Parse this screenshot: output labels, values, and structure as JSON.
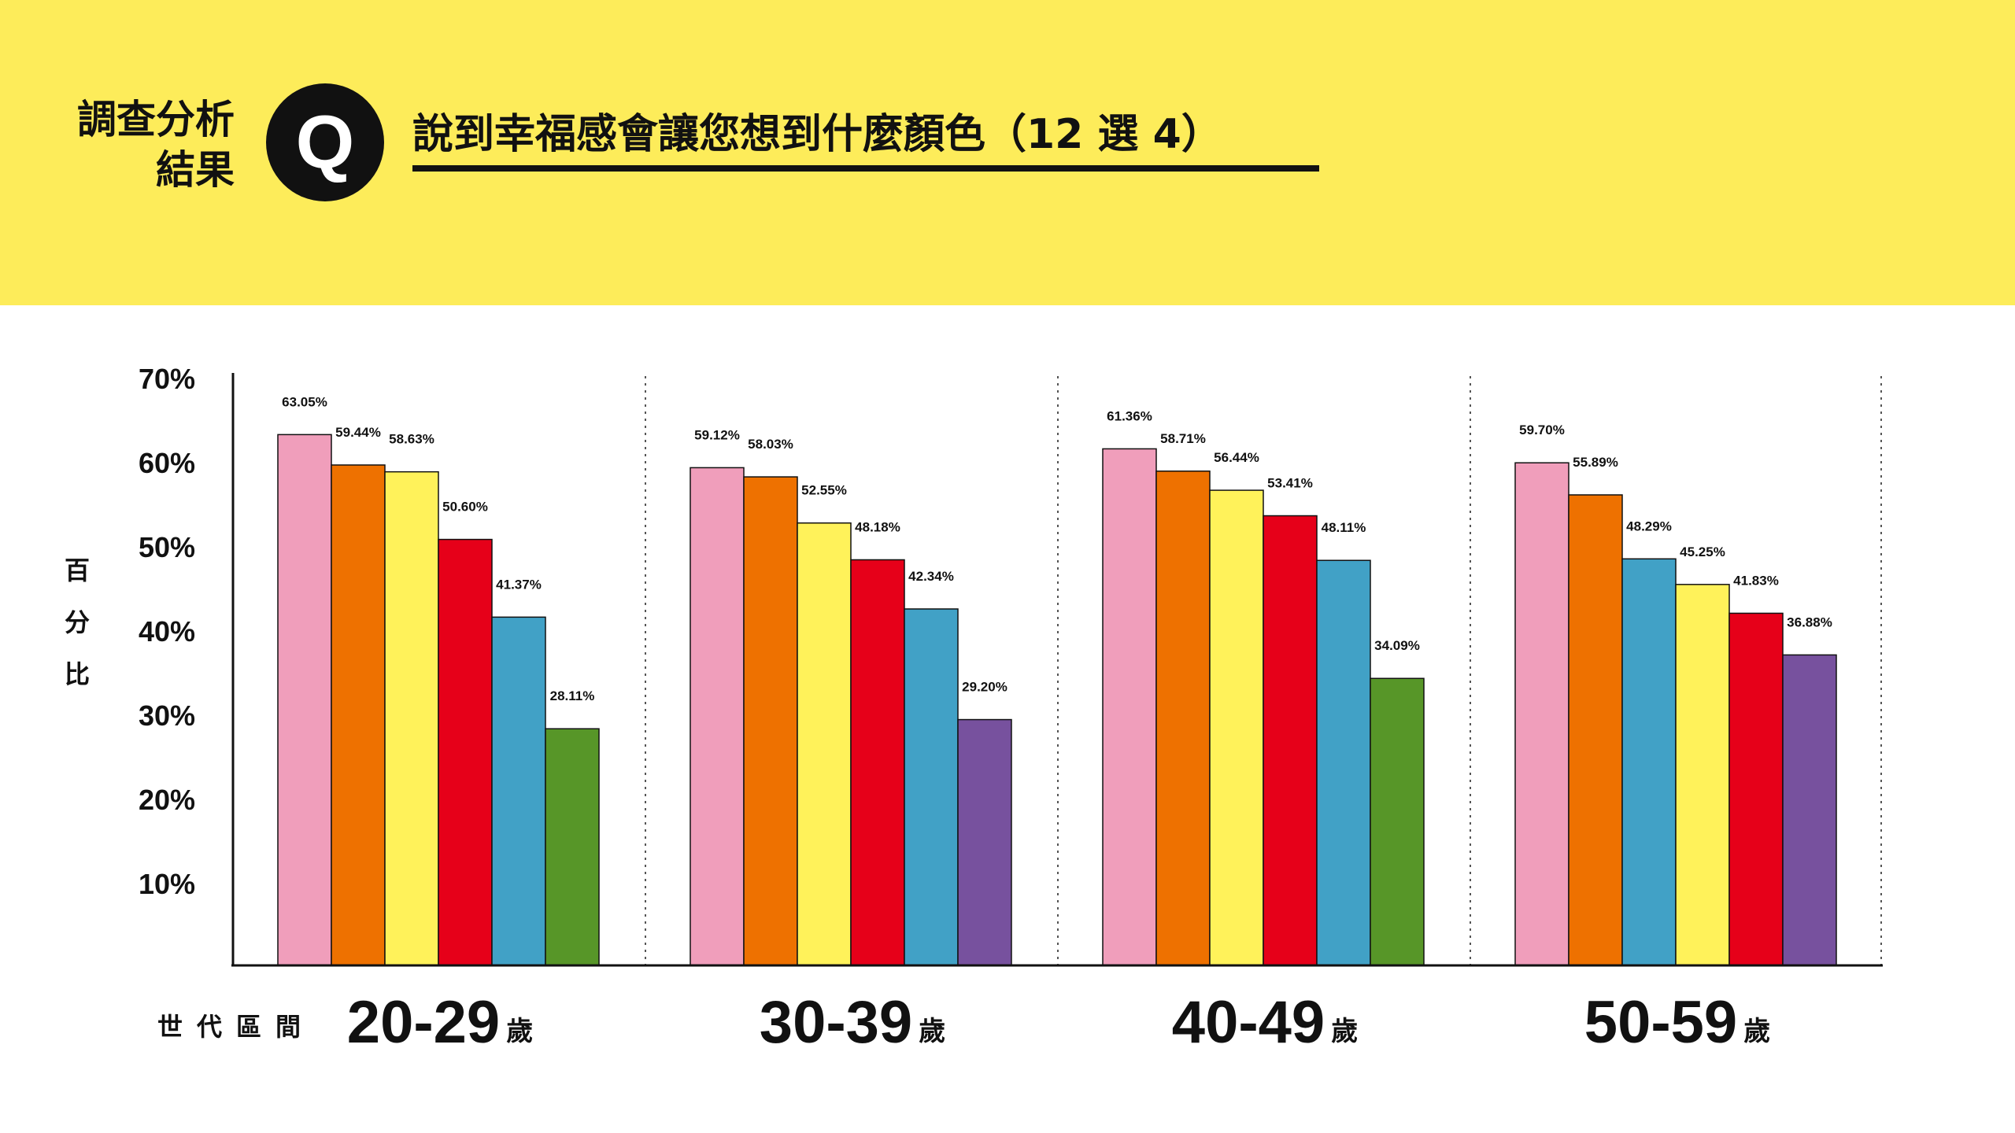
{
  "header": {
    "label_line1": "調查分析",
    "label_line2": "結果",
    "badge": "Q",
    "question": "說到幸福感會讓您想到什麼顏色（12 選 4）"
  },
  "colors": {
    "header_bg": "#FDEC5A",
    "text": "#111111",
    "pink": "#F09EBB",
    "orange": "#EE7100",
    "yellow": "#FFF25A",
    "red": "#E60019",
    "blue": "#41A1C6",
    "green": "#579628",
    "purple": "#77519E"
  },
  "y_title_chars": [
    "百",
    "分",
    "比"
  ],
  "x_axis_label": "世代區間",
  "chart_data": {
    "type": "bar",
    "ylim": [
      0,
      70
    ],
    "yticks": [
      10,
      20,
      30,
      40,
      50,
      60,
      70
    ],
    "ytick_labels": [
      "10%",
      "20%",
      "30%",
      "40%",
      "50%",
      "60%",
      "70%"
    ],
    "grid": false,
    "groups": [
      {
        "label": "20-29",
        "unit": "歲",
        "bars": [
          {
            "value": 63.05,
            "label": "63.05%",
            "color": "pink"
          },
          {
            "value": 59.44,
            "label": "59.44%",
            "color": "orange"
          },
          {
            "value": 58.63,
            "label": "58.63%",
            "color": "yellow"
          },
          {
            "value": 50.6,
            "label": "50.60%",
            "color": "red"
          },
          {
            "value": 41.37,
            "label": "41.37%",
            "color": "blue"
          },
          {
            "value": 28.11,
            "label": "28.11%",
            "color": "green"
          }
        ]
      },
      {
        "label": "30-39",
        "unit": "歲",
        "bars": [
          {
            "value": 59.12,
            "label": "59.12%",
            "color": "pink"
          },
          {
            "value": 58.03,
            "label": "58.03%",
            "color": "orange"
          },
          {
            "value": 52.55,
            "label": "52.55%",
            "color": "yellow"
          },
          {
            "value": 48.18,
            "label": "48.18%",
            "color": "red"
          },
          {
            "value": 42.34,
            "label": "42.34%",
            "color": "blue"
          },
          {
            "value": 29.2,
            "label": "29.20%",
            "color": "purple"
          }
        ]
      },
      {
        "label": "40-49",
        "unit": "歲",
        "bars": [
          {
            "value": 61.36,
            "label": "61.36%",
            "color": "pink"
          },
          {
            "value": 58.71,
            "label": "58.71%",
            "color": "orange"
          },
          {
            "value": 56.44,
            "label": "56.44%",
            "color": "yellow"
          },
          {
            "value": 53.41,
            "label": "53.41%",
            "color": "red"
          },
          {
            "value": 48.11,
            "label": "48.11%",
            "color": "blue"
          },
          {
            "value": 34.09,
            "label": "34.09%",
            "color": "green"
          }
        ]
      },
      {
        "label": "50-59",
        "unit": "歲",
        "bars": [
          {
            "value": 59.7,
            "label": "59.70%",
            "color": "pink"
          },
          {
            "value": 55.89,
            "label": "55.89%",
            "color": "orange"
          },
          {
            "value": 48.29,
            "label": "48.29%",
            "color": "blue"
          },
          {
            "value": 45.25,
            "label": "45.25%",
            "color": "yellow"
          },
          {
            "value": 41.83,
            "label": "41.83%",
            "color": "red"
          },
          {
            "value": 36.88,
            "label": "36.88%",
            "color": "purple"
          }
        ]
      }
    ]
  }
}
